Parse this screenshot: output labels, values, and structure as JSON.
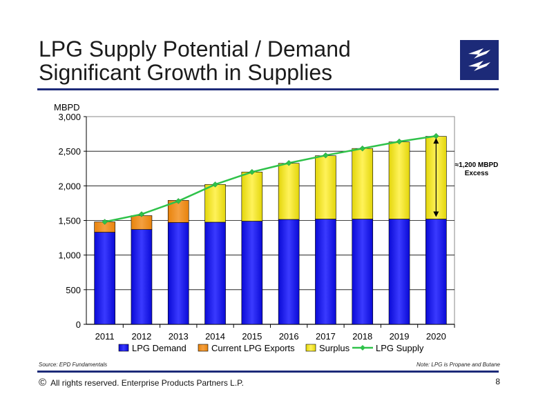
{
  "slide": {
    "title_line1": "LPG Supply Potential / Demand",
    "title_line2": "Significant Growth in Supplies",
    "source": "Source:  EPD Fundamentals",
    "note": "Note:  LPG is Propane and Butane",
    "copyright_symbol": "©",
    "copyright": "All rights reserved. Enterprise Products Partners L.P.",
    "page_number": "8"
  },
  "colors": {
    "demand": "#0a0ad6",
    "exports": "#e8830c",
    "surplus": "#e3d60a",
    "supply": "#2fc24a",
    "rule": "#1c2a78"
  },
  "chart_data": {
    "type": "bar",
    "stacked": true,
    "ylabel": "MBPD",
    "ylim": [
      0,
      3000
    ],
    "yticks": [
      "0",
      "500",
      "1,000",
      "1,500",
      "2,000",
      "2,500",
      "3,000"
    ],
    "grid": true,
    "legend_position": "bottom",
    "categories": [
      "2011",
      "2012",
      "2013",
      "2014",
      "2015",
      "2016",
      "2017",
      "2018",
      "2019",
      "2020"
    ],
    "series": [
      {
        "name": "LPG Demand",
        "kind": "bar",
        "values": [
          1330,
          1370,
          1470,
          1475,
          1490,
          1515,
          1520,
          1520,
          1520,
          1520
        ]
      },
      {
        "name": "Current LPG Exports",
        "kind": "bar",
        "values": [
          150,
          200,
          320,
          0,
          0,
          0,
          0,
          0,
          0,
          0
        ]
      },
      {
        "name": "Surplus",
        "kind": "bar",
        "values": [
          0,
          0,
          0,
          545,
          710,
          810,
          915,
          1020,
          1115,
          1195
        ]
      },
      {
        "name": "LPG Supply",
        "kind": "line",
        "values": [
          1480,
          1590,
          1780,
          2020,
          2200,
          2330,
          2440,
          2540,
          2640,
          2720
        ]
      }
    ],
    "annotation": {
      "line1": "≈1,200 MBPD",
      "line2": "Excess"
    }
  }
}
